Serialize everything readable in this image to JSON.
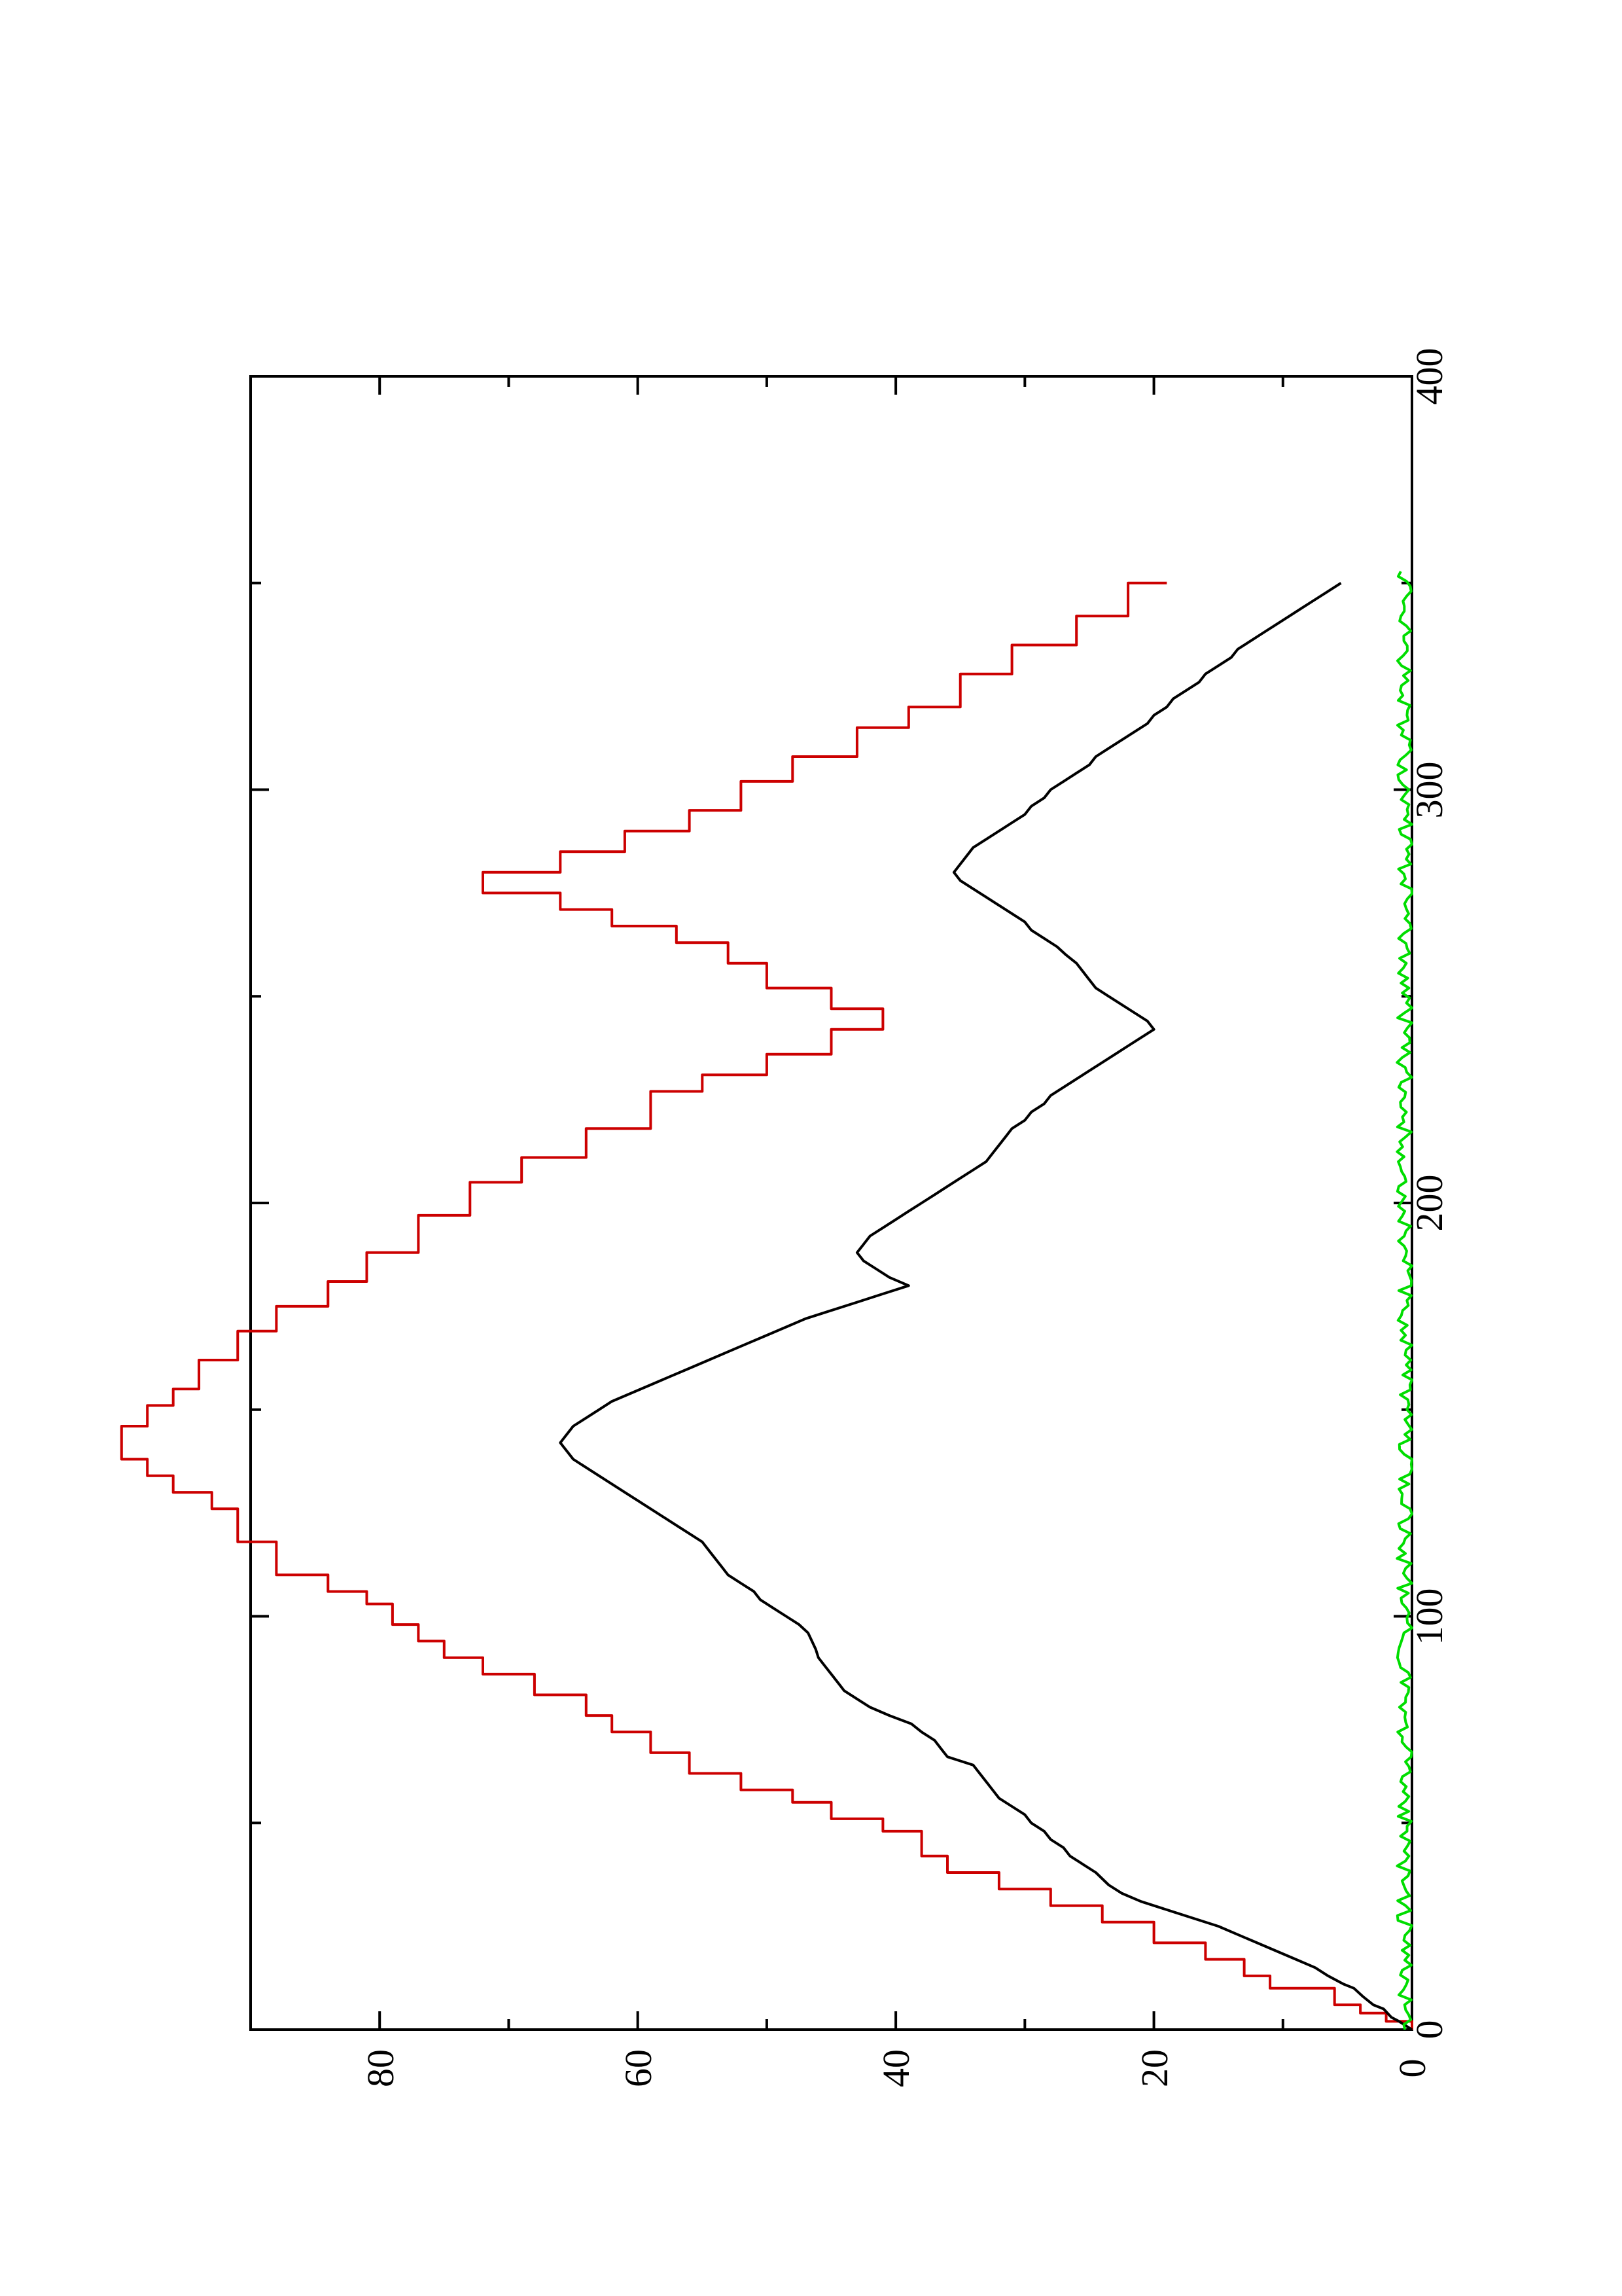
{
  "chart_data": {
    "type": "line",
    "orientation": "rotated-90-ccw",
    "title": "",
    "xlabel": "",
    "ylabel": "",
    "xlim": [
      0,
      400
    ],
    "ylim": [
      0,
      90
    ],
    "x_ticks": [
      0,
      100,
      200,
      300,
      400
    ],
    "x_minor_ticks": [
      50,
      150,
      250,
      350
    ],
    "y_ticks": [
      0,
      20,
      40,
      60,
      80
    ],
    "y_minor_ticks": [
      10,
      30,
      50,
      70
    ],
    "grid": false,
    "legend": "none",
    "series": [
      {
        "color": "#cc0000",
        "style": "step",
        "points": [
          [
            0,
            0
          ],
          [
            2,
            0
          ],
          [
            2,
            2
          ],
          [
            4,
            2
          ],
          [
            4,
            4
          ],
          [
            6,
            4
          ],
          [
            6,
            6
          ],
          [
            10,
            6
          ],
          [
            10,
            11
          ],
          [
            13,
            11
          ],
          [
            13,
            13
          ],
          [
            17,
            13
          ],
          [
            17,
            16
          ],
          [
            21,
            16
          ],
          [
            21,
            20
          ],
          [
            26,
            20
          ],
          [
            26,
            24
          ],
          [
            30,
            24
          ],
          [
            30,
            28
          ],
          [
            34,
            28
          ],
          [
            34,
            32
          ],
          [
            38,
            32
          ],
          [
            38,
            36
          ],
          [
            42,
            36
          ],
          [
            42,
            38
          ],
          [
            48,
            38
          ],
          [
            48,
            41
          ],
          [
            51,
            41
          ],
          [
            51,
            45
          ],
          [
            55,
            45
          ],
          [
            55,
            48
          ],
          [
            58,
            48
          ],
          [
            58,
            52
          ],
          [
            62,
            52
          ],
          [
            62,
            56
          ],
          [
            67,
            56
          ],
          [
            67,
            59
          ],
          [
            72,
            59
          ],
          [
            72,
            62
          ],
          [
            76,
            62
          ],
          [
            76,
            64
          ],
          [
            81,
            64
          ],
          [
            81,
            68
          ],
          [
            86,
            68
          ],
          [
            86,
            72
          ],
          [
            90,
            72
          ],
          [
            90,
            75
          ],
          [
            94,
            75
          ],
          [
            94,
            77
          ],
          [
            98,
            77
          ],
          [
            98,
            79
          ],
          [
            103,
            79
          ],
          [
            103,
            81
          ],
          [
            106,
            81
          ],
          [
            106,
            84
          ],
          [
            110,
            84
          ],
          [
            110,
            88
          ],
          [
            118,
            88
          ],
          [
            118,
            91
          ],
          [
            126,
            91
          ],
          [
            126,
            93
          ],
          [
            130,
            93
          ],
          [
            130,
            96
          ],
          [
            134,
            96
          ],
          [
            134,
            98
          ],
          [
            138,
            98
          ],
          [
            138,
            100
          ],
          [
            146,
            100
          ],
          [
            146,
            98
          ],
          [
            151,
            98
          ],
          [
            151,
            96
          ],
          [
            155,
            96
          ],
          [
            155,
            94
          ],
          [
            162,
            94
          ],
          [
            162,
            91
          ],
          [
            169,
            91
          ],
          [
            169,
            88
          ],
          [
            175,
            88
          ],
          [
            175,
            84
          ],
          [
            181,
            84
          ],
          [
            181,
            81
          ],
          [
            188,
            81
          ],
          [
            188,
            77
          ],
          [
            197,
            77
          ],
          [
            197,
            73
          ],
          [
            205,
            73
          ],
          [
            205,
            69
          ],
          [
            211,
            69
          ],
          [
            211,
            64
          ],
          [
            218,
            64
          ],
          [
            218,
            59
          ],
          [
            227,
            59
          ],
          [
            227,
            55
          ],
          [
            231,
            55
          ],
          [
            231,
            50
          ],
          [
            236,
            50
          ],
          [
            236,
            45
          ],
          [
            242,
            45
          ],
          [
            242,
            41
          ],
          [
            247,
            41
          ],
          [
            247,
            45
          ],
          [
            252,
            45
          ],
          [
            252,
            50
          ],
          [
            258,
            50
          ],
          [
            258,
            53
          ],
          [
            263,
            53
          ],
          [
            263,
            57
          ],
          [
            267,
            57
          ],
          [
            267,
            62
          ],
          [
            271,
            62
          ],
          [
            271,
            66
          ],
          [
            275,
            66
          ],
          [
            275,
            72
          ],
          [
            280,
            72
          ],
          [
            280,
            66
          ],
          [
            285,
            66
          ],
          [
            285,
            61
          ],
          [
            290,
            61
          ],
          [
            290,
            56
          ],
          [
            295,
            56
          ],
          [
            295,
            52
          ],
          [
            302,
            52
          ],
          [
            302,
            48
          ],
          [
            308,
            48
          ],
          [
            308,
            43
          ],
          [
            315,
            43
          ],
          [
            315,
            39
          ],
          [
            320,
            39
          ],
          [
            320,
            35
          ],
          [
            328,
            35
          ],
          [
            328,
            31
          ],
          [
            335,
            31
          ],
          [
            335,
            26
          ],
          [
            342,
            26
          ],
          [
            342,
            22
          ],
          [
            350,
            22
          ],
          [
            350,
            19
          ]
        ]
      },
      {
        "color": "#000000",
        "style": "line",
        "points": [
          [
            0,
            0
          ],
          [
            1,
            0.5
          ],
          [
            2,
            1
          ],
          [
            3,
            1.6
          ],
          [
            5,
            2.2
          ],
          [
            6,
            3
          ],
          [
            8,
            3.8
          ],
          [
            10,
            4.5
          ],
          [
            11,
            5.3
          ],
          [
            13,
            6.5
          ],
          [
            15,
            7.5
          ],
          [
            17,
            9
          ],
          [
            19,
            10.5
          ],
          [
            21,
            12
          ],
          [
            23,
            13.5
          ],
          [
            25,
            15
          ],
          [
            27,
            17
          ],
          [
            29,
            19
          ],
          [
            31,
            21
          ],
          [
            33,
            22.5
          ],
          [
            35,
            23.5
          ],
          [
            38,
            24.5
          ],
          [
            40,
            25.5
          ],
          [
            42,
            26.5
          ],
          [
            44,
            27
          ],
          [
            46,
            28
          ],
          [
            48,
            28.5
          ],
          [
            50,
            29.5
          ],
          [
            52,
            30
          ],
          [
            54,
            31
          ],
          [
            56,
            32
          ],
          [
            58,
            32.5
          ],
          [
            60,
            33
          ],
          [
            62,
            33.5
          ],
          [
            64,
            34
          ],
          [
            65,
            35
          ],
          [
            66,
            36
          ],
          [
            68,
            36.5
          ],
          [
            70,
            37
          ],
          [
            72,
            38
          ],
          [
            74,
            38.8
          ],
          [
            76,
            40.5
          ],
          [
            78,
            42
          ],
          [
            80,
            43
          ],
          [
            82,
            44
          ],
          [
            84,
            44.5
          ],
          [
            86,
            45
          ],
          [
            88,
            45.5
          ],
          [
            90,
            46
          ],
          [
            92,
            46.2
          ],
          [
            94,
            46.5
          ],
          [
            96,
            46.8
          ],
          [
            98,
            47.5
          ],
          [
            100,
            48.5
          ],
          [
            102,
            49.5
          ],
          [
            104,
            50.5
          ],
          [
            106,
            51
          ],
          [
            108,
            52
          ],
          [
            110,
            53
          ],
          [
            112,
            53.5
          ],
          [
            114,
            54
          ],
          [
            116,
            54.5
          ],
          [
            118,
            55
          ],
          [
            120,
            56
          ],
          [
            122,
            57
          ],
          [
            124,
            58
          ],
          [
            126,
            59
          ],
          [
            128,
            60
          ],
          [
            130,
            61
          ],
          [
            132,
            62
          ],
          [
            134,
            63
          ],
          [
            136,
            64
          ],
          [
            138,
            65
          ],
          [
            140,
            65.5
          ],
          [
            142,
            66
          ],
          [
            144,
            65.5
          ],
          [
            146,
            65
          ],
          [
            148,
            64
          ],
          [
            150,
            63
          ],
          [
            152,
            62
          ],
          [
            154,
            60.5
          ],
          [
            156,
            59
          ],
          [
            158,
            57.5
          ],
          [
            160,
            56
          ],
          [
            162,
            54.5
          ],
          [
            164,
            53
          ],
          [
            166,
            51.5
          ],
          [
            168,
            50
          ],
          [
            170,
            48.5
          ],
          [
            172,
            47
          ],
          [
            174,
            45
          ],
          [
            176,
            43
          ],
          [
            178,
            41
          ],
          [
            180,
            39
          ],
          [
            182,
            40.5
          ],
          [
            184,
            41.5
          ],
          [
            186,
            42.5
          ],
          [
            188,
            43
          ],
          [
            190,
            42.5
          ],
          [
            192,
            42
          ],
          [
            194,
            41
          ],
          [
            196,
            40
          ],
          [
            198,
            39
          ],
          [
            200,
            38
          ],
          [
            202,
            37
          ],
          [
            204,
            36
          ],
          [
            206,
            35
          ],
          [
            208,
            34
          ],
          [
            210,
            33
          ],
          [
            212,
            32.5
          ],
          [
            214,
            32
          ],
          [
            216,
            31.5
          ],
          [
            218,
            31
          ],
          [
            220,
            30
          ],
          [
            222,
            29.5
          ],
          [
            224,
            28.5
          ],
          [
            226,
            28
          ],
          [
            228,
            27
          ],
          [
            230,
            26
          ],
          [
            232,
            25
          ],
          [
            234,
            24
          ],
          [
            236,
            23
          ],
          [
            238,
            22
          ],
          [
            240,
            21
          ],
          [
            242,
            20
          ],
          [
            244,
            20.5
          ],
          [
            246,
            21.5
          ],
          [
            248,
            22.5
          ],
          [
            250,
            23.5
          ],
          [
            252,
            24.5
          ],
          [
            254,
            25
          ],
          [
            256,
            25.5
          ],
          [
            258,
            26
          ],
          [
            260,
            26.8
          ],
          [
            262,
            27.5
          ],
          [
            264,
            28.5
          ],
          [
            266,
            29.5
          ],
          [
            268,
            30
          ],
          [
            270,
            31
          ],
          [
            272,
            32
          ],
          [
            274,
            33
          ],
          [
            276,
            34
          ],
          [
            278,
            35
          ],
          [
            280,
            35.5
          ],
          [
            282,
            35
          ],
          [
            284,
            34.5
          ],
          [
            286,
            34
          ],
          [
            288,
            33
          ],
          [
            290,
            32
          ],
          [
            292,
            31
          ],
          [
            294,
            30
          ],
          [
            296,
            29.5
          ],
          [
            298,
            28.5
          ],
          [
            300,
            28
          ],
          [
            302,
            27
          ],
          [
            304,
            26
          ],
          [
            306,
            25
          ],
          [
            308,
            24.5
          ],
          [
            310,
            23.5
          ],
          [
            312,
            22.5
          ],
          [
            314,
            21.5
          ],
          [
            316,
            20.5
          ],
          [
            318,
            20
          ],
          [
            320,
            19
          ],
          [
            322,
            18.5
          ],
          [
            324,
            17.5
          ],
          [
            326,
            16.5
          ],
          [
            328,
            16
          ],
          [
            330,
            15
          ],
          [
            332,
            14
          ],
          [
            334,
            13.5
          ],
          [
            336,
            12.5
          ],
          [
            338,
            11.5
          ],
          [
            340,
            10.5
          ],
          [
            342,
            9.5
          ],
          [
            344,
            8.5
          ],
          [
            346,
            7.5
          ],
          [
            348,
            6.5
          ],
          [
            350,
            5.5
          ]
        ]
      },
      {
        "color": "#00dd00",
        "style": "noise",
        "baseline": 0.5,
        "amplitude": 0.6,
        "x_range": [
          0,
          353
        ]
      }
    ]
  },
  "tick_labels": {
    "x": [
      "0",
      "100",
      "200",
      "300",
      "400"
    ],
    "y": [
      "0",
      "20",
      "40",
      "60",
      "80"
    ]
  }
}
